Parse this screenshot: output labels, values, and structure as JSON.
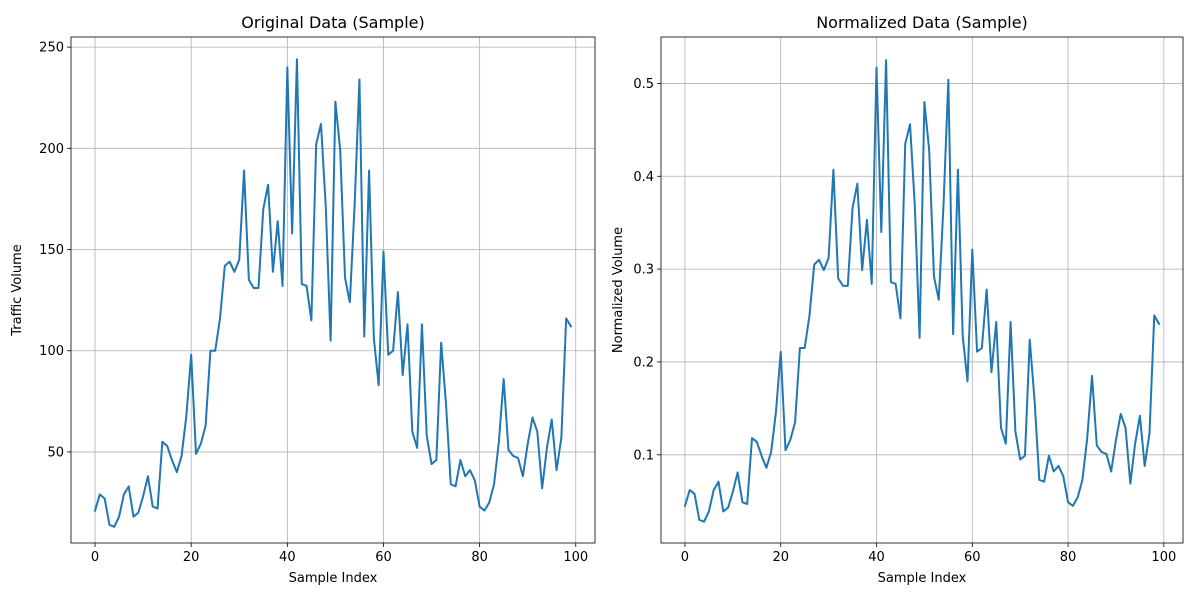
{
  "chart_data": [
    {
      "type": "line",
      "title": "Original Data (Sample)",
      "xlabel": "Sample Index",
      "ylabel": "Traffic Volume",
      "xlim": [
        -5,
        104
      ],
      "ylim": [
        5,
        255
      ],
      "xticks": [
        0,
        20,
        40,
        60,
        80,
        100
      ],
      "yticks": [
        50,
        100,
        150,
        200,
        250
      ],
      "ytick_labels": [
        "50",
        "100",
        "150",
        "200",
        "250"
      ],
      "grid": true,
      "color": "#1f77b4",
      "series": [
        {
          "values": [
            21,
            29,
            27,
            14,
            13,
            18,
            29,
            33,
            18,
            20,
            28,
            38,
            23,
            22,
            55,
            53,
            46,
            40,
            48,
            68,
            98,
            49,
            54,
            63,
            100,
            100,
            116,
            142,
            144,
            139,
            145,
            189,
            135,
            131,
            131,
            170,
            182,
            139,
            164,
            132,
            240,
            158,
            244,
            133,
            132,
            115,
            202,
            212,
            171,
            105,
            223,
            199,
            136,
            124,
            172,
            234,
            107,
            189,
            106,
            83,
            149,
            98,
            100,
            129,
            88,
            113,
            60,
            52,
            113,
            58,
            44,
            46,
            104,
            74,
            34,
            33,
            46,
            38,
            41,
            36,
            23,
            21,
            25,
            34,
            55,
            86,
            51,
            48,
            47,
            38,
            54,
            67,
            60,
            32,
            52,
            66,
            41,
            57,
            116,
            112
          ]
        }
      ]
    },
    {
      "type": "line",
      "title": "Normalized Data (Sample)",
      "xlabel": "Sample Index",
      "ylabel": "Normalized Volume",
      "xlim": [
        -5,
        104
      ],
      "ylim": [
        0.005,
        0.55
      ],
      "xticks": [
        0,
        20,
        40,
        60,
        80,
        100
      ],
      "yticks": [
        0.1,
        0.2,
        0.3,
        0.4,
        0.5
      ],
      "ytick_labels": [
        "0.1",
        "0.2",
        "0.3",
        "0.4",
        "0.5"
      ],
      "grid": true,
      "color": "#1f77b4",
      "series": [
        {
          "values": [
            0.045,
            0.062,
            0.058,
            0.03,
            0.028,
            0.039,
            0.062,
            0.071,
            0.039,
            0.043,
            0.06,
            0.081,
            0.049,
            0.047,
            0.118,
            0.114,
            0.099,
            0.086,
            0.103,
            0.146,
            0.211,
            0.105,
            0.116,
            0.135,
            0.215,
            0.215,
            0.25,
            0.305,
            0.31,
            0.299,
            0.312,
            0.407,
            0.29,
            0.282,
            0.282,
            0.366,
            0.392,
            0.299,
            0.353,
            0.284,
            0.517,
            0.34,
            0.525,
            0.286,
            0.284,
            0.247,
            0.435,
            0.456,
            0.368,
            0.226,
            0.48,
            0.428,
            0.292,
            0.267,
            0.37,
            0.504,
            0.23,
            0.407,
            0.228,
            0.179,
            0.321,
            0.211,
            0.215,
            0.278,
            0.189,
            0.243,
            0.129,
            0.112,
            0.243,
            0.125,
            0.095,
            0.099,
            0.224,
            0.159,
            0.073,
            0.071,
            0.099,
            0.082,
            0.088,
            0.077,
            0.049,
            0.045,
            0.054,
            0.073,
            0.118,
            0.185,
            0.11,
            0.103,
            0.101,
            0.082,
            0.116,
            0.144,
            0.129,
            0.069,
            0.112,
            0.142,
            0.088,
            0.123,
            0.25,
            0.241
          ]
        }
      ]
    }
  ]
}
